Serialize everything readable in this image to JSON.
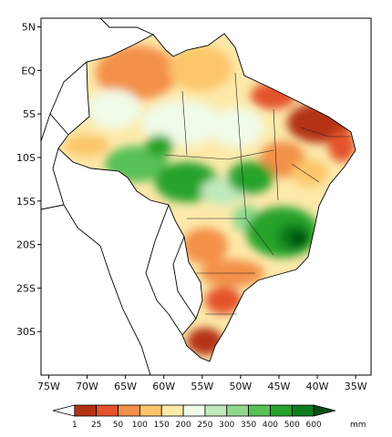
{
  "map": {
    "lon_range": [
      -76,
      -33
    ],
    "lat_range": [
      -35,
      6
    ],
    "lat_ticks": [
      {
        "value": 5,
        "label": "5N"
      },
      {
        "value": 0,
        "label": "EQ"
      },
      {
        "value": -5,
        "label": "5S"
      },
      {
        "value": -10,
        "label": "10S"
      },
      {
        "value": -15,
        "label": "15S"
      },
      {
        "value": -20,
        "label": "20S"
      },
      {
        "value": -25,
        "label": "25S"
      },
      {
        "value": -30,
        "label": "30S"
      }
    ],
    "lon_ticks": [
      {
        "value": -75,
        "label": "75W"
      },
      {
        "value": -70,
        "label": "70W"
      },
      {
        "value": -65,
        "label": "65W"
      },
      {
        "value": -60,
        "label": "60W"
      },
      {
        "value": -55,
        "label": "55W"
      },
      {
        "value": -50,
        "label": "50W"
      },
      {
        "value": -45,
        "label": "45W"
      },
      {
        "value": -40,
        "label": "40W"
      },
      {
        "value": -35,
        "label": "35W"
      }
    ]
  },
  "legend": {
    "unit": "mm",
    "labels": [
      "1",
      "25",
      "50",
      "100",
      "150",
      "200",
      "250",
      "300",
      "350",
      "400",
      "500",
      "600"
    ],
    "colors": [
      "#b43214",
      "#e4532a",
      "#f3904a",
      "#fbc66a",
      "#fde9aa",
      "#f0fbe8",
      "#bfeabb",
      "#8fd88d",
      "#59c056",
      "#27a32b",
      "#0d7d1f",
      "#044f10"
    ]
  }
}
